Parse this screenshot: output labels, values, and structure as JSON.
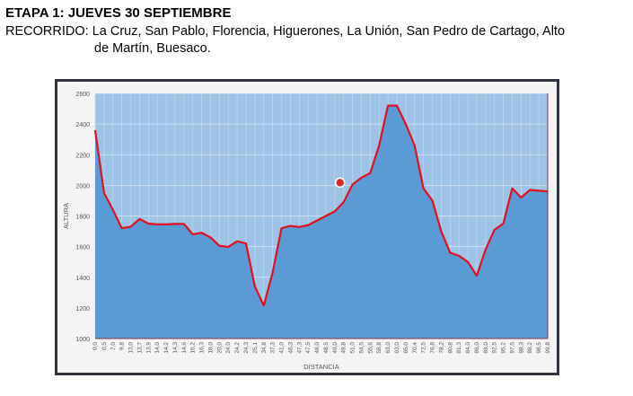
{
  "header": {
    "title": "ETAPA 1: JUEVES 30 SEPTIEMBRE",
    "route_label": "RECORRIDO:",
    "route_line1": "La Cruz, San Pablo, Florencia, Higuerones, La Unión, San Pedro de Cartago, Alto",
    "route_line2": "de Martín, Buesaco."
  },
  "chart_data": {
    "type": "area",
    "title": "",
    "xlabel": "DISTANCIA",
    "ylabel": "ALTURA",
    "ylim": [
      1000,
      2600
    ],
    "yticks": [
      1000,
      1200,
      1400,
      1600,
      1800,
      2000,
      2200,
      2400,
      2600
    ],
    "grid": true,
    "categories": [
      "0,0",
      "0,5",
      "7,0",
      "9,8",
      "13,0",
      "13,7",
      "13,9",
      "14,0",
      "14,2",
      "14,3",
      "14,6",
      "15,2",
      "16,3",
      "18,0",
      "20,0",
      "24,0",
      "24,2",
      "24,3",
      "25,1",
      "34,8",
      "37,3",
      "41,0",
      "46,3",
      "47,3",
      "47,5",
      "48,0",
      "48,5",
      "49,0",
      "49,8",
      "51,0",
      "54,5",
      "55,6",
      "58,8",
      "63,0",
      "63,0",
      "65,0",
      "70,4",
      "72,5",
      "76,8",
      "78,2",
      "80,8",
      "81,3",
      "84,0",
      "86,0",
      "89,0",
      "92,5",
      "95,2",
      "97,5",
      "98,3",
      "98,2",
      "98,5",
      "99,8"
    ],
    "values": [
      2360,
      1950,
      1840,
      1720,
      1730,
      1780,
      1750,
      1745,
      1745,
      1748,
      1748,
      1680,
      1690,
      1660,
      1605,
      1598,
      1635,
      1620,
      1340,
      1215,
      1430,
      1720,
      1735,
      1728,
      1740,
      1770,
      1800,
      1830,
      1890,
      2005,
      2050,
      2080,
      2260,
      2520,
      2520,
      2400,
      2260,
      1980,
      1900,
      1700,
      1560,
      1540,
      1500,
      1410,
      1580,
      1710,
      1750,
      1980,
      1920,
      1970,
      1965,
      1960
    ],
    "colors": {
      "fill": "#5b9bd5",
      "plot_bg": "#9dc3e6",
      "line": "#e0101e"
    }
  }
}
